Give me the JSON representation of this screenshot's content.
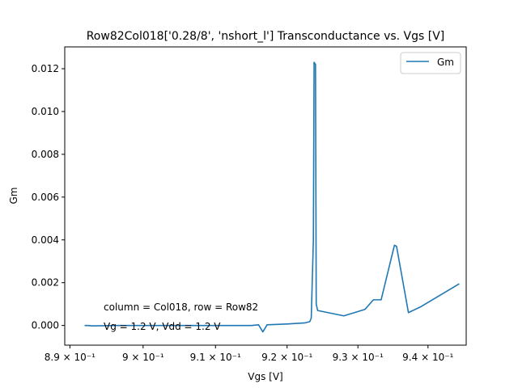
{
  "chart_data": {
    "type": "line",
    "title": "Row82Col018['0.28/8', 'nshort_l'] Transconductance vs. Vgs [V]",
    "xlabel": "Vgs [V]",
    "ylabel": "Gm",
    "xscale": "log",
    "xlim": [
      0.8893,
      0.9455
    ],
    "ylim": [
      -0.00092,
      0.01302
    ],
    "x_ticks": [
      {
        "value": 0.89,
        "label": "8.9 × 10⁻¹"
      },
      {
        "value": 0.9,
        "label": "9 × 10⁻¹"
      },
      {
        "value": 0.91,
        "label": "9.1 × 10⁻¹"
      },
      {
        "value": 0.92,
        "label": "9.2 × 10⁻¹"
      },
      {
        "value": 0.93,
        "label": "9.3 × 10⁻¹"
      },
      {
        "value": 0.94,
        "label": "9.4 × 10⁻¹"
      }
    ],
    "y_ticks": [
      {
        "value": 0.0,
        "label": "0.000"
      },
      {
        "value": 0.002,
        "label": "0.002"
      },
      {
        "value": 0.004,
        "label": "0.004"
      },
      {
        "value": 0.006,
        "label": "0.006"
      },
      {
        "value": 0.008,
        "label": "0.008"
      },
      {
        "value": 0.01,
        "label": "0.010"
      },
      {
        "value": 0.012,
        "label": "0.012"
      }
    ],
    "grid": false,
    "legend": {
      "position": "top-right"
    },
    "series": [
      {
        "name": "Gm",
        "color": "#1f77b4",
        "x": [
          0.892,
          0.8925,
          0.893,
          0.896,
          0.899,
          0.902,
          0.908,
          0.912,
          0.915,
          0.916,
          0.9166,
          0.9172,
          0.92,
          0.9225,
          0.9232,
          0.9234,
          0.9237,
          0.9238,
          0.924,
          0.9241,
          0.9243,
          0.928,
          0.931,
          0.9322,
          0.9333,
          0.9352,
          0.9355,
          0.9372,
          0.939,
          0.9445
        ],
        "y": [
          0.0,
          0.0,
          -2e-05,
          0.0,
          0.0,
          0.0,
          0.0,
          0.0,
          0.0,
          3e-05,
          -0.0003,
          3e-05,
          7e-05,
          0.00012,
          0.00018,
          0.00035,
          0.004,
          0.0123,
          0.0122,
          0.001,
          0.0007,
          0.00045,
          0.00075,
          0.0012,
          0.0012,
          0.00375,
          0.0037,
          0.0006,
          0.00088,
          0.00195
        ]
      }
    ],
    "annotations": [
      {
        "text": "column = Col018, row = Row82",
        "x": 0.8946,
        "y": 0.00066
      },
      {
        "text": "Vg = 1.2 V, Vdd = 1.2 V",
        "x": 0.8946,
        "y": -0.0003
      }
    ]
  }
}
